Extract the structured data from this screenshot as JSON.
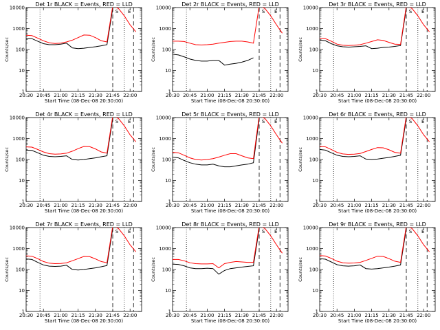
{
  "shared": {
    "xlabel": "Start Time (08-Dec-08 20:30:00)",
    "ylabel": "Counts/sec",
    "x_ticks": [
      "20:30",
      "20:45",
      "21:00",
      "21:15",
      "21:30",
      "21:45",
      "22:00"
    ],
    "y_ticks": [
      "1",
      "10",
      "100",
      "1000",
      "10000"
    ],
    "annotations": [
      "S",
      "E"
    ],
    "colors": {
      "black": "#000000",
      "red": "#ff0000"
    }
  },
  "chart_data": [
    {
      "type": "line",
      "title": "Det 1r BLACK = Events, RED = LLD",
      "x": [
        "20:30",
        "20:35",
        "20:40",
        "20:45",
        "20:50",
        "20:55",
        "21:00",
        "21:05",
        "21:10",
        "21:15",
        "21:20",
        "21:25",
        "21:30",
        "21:35",
        "21:40",
        "21:45",
        "21:50",
        "21:55",
        "22:00",
        "22:05"
      ],
      "ylim": [
        1,
        10000
      ],
      "log_y": true,
      "series": [
        {
          "name": "BLACK = Events",
          "color": "black",
          "values": [
            330,
            330,
            250,
            190,
            170,
            170,
            180,
            200,
            120,
            110,
            115,
            125,
            135,
            150,
            170,
            9000,
            null,
            null,
            null,
            null
          ]
        },
        {
          "name": "RED = LLD",
          "color": "red",
          "values": [
            480,
            460,
            350,
            260,
            210,
            195,
            200,
            230,
            280,
            370,
            490,
            480,
            370,
            260,
            230,
            12000,
            9000,
            4000,
            1500,
            700
          ]
        }
      ],
      "vlines": [
        "20:42 dotted",
        "21:45 dashed",
        "21:55 dotted",
        "22:03 dashed"
      ]
    },
    {
      "type": "line",
      "title": "Det 2r BLACK = Events, RED = LLD",
      "x": [
        "20:30",
        "20:35",
        "20:40",
        "20:45",
        "20:50",
        "20:55",
        "21:00",
        "21:05",
        "21:10",
        "21:15",
        "21:20",
        "21:25",
        "21:30",
        "21:35",
        "21:40",
        "21:45",
        "21:50",
        "21:55",
        "22:00",
        "22:05"
      ],
      "ylim": [
        1,
        10000
      ],
      "log_y": true,
      "series": [
        {
          "name": "BLACK = Events",
          "color": "black",
          "values": [
            60,
            55,
            45,
            35,
            30,
            28,
            28,
            30,
            30,
            18,
            20,
            22,
            25,
            30,
            40,
            null,
            null,
            null,
            null,
            null
          ]
        },
        {
          "name": "RED = LLD",
          "color": "red",
          "values": [
            250,
            250,
            240,
            200,
            170,
            165,
            170,
            180,
            200,
            220,
            240,
            250,
            250,
            230,
            200,
            12000,
            9000,
            4000,
            1500,
            600
          ]
        }
      ],
      "vlines": [
        "20:42 dotted",
        "21:45 dashed",
        "21:55 dotted",
        "22:03 dashed"
      ]
    },
    {
      "type": "line",
      "title": "Det 3r BLACK = Events, RED = LLD",
      "x": [
        "20:30",
        "20:35",
        "20:40",
        "20:45",
        "20:50",
        "20:55",
        "21:00",
        "21:05",
        "21:10",
        "21:15",
        "21:20",
        "21:25",
        "21:30",
        "21:35",
        "21:40",
        "21:45",
        "21:50",
        "21:55",
        "22:00",
        "22:05"
      ],
      "ylim": [
        1,
        10000
      ],
      "log_y": true,
      "series": [
        {
          "name": "BLACK = Events",
          "color": "black",
          "values": [
            280,
            260,
            190,
            150,
            135,
            130,
            135,
            140,
            150,
            110,
            115,
            125,
            130,
            140,
            155,
            9000,
            null,
            null,
            null,
            null
          ]
        },
        {
          "name": "RED = LLD",
          "color": "red",
          "values": [
            350,
            330,
            250,
            180,
            160,
            155,
            160,
            170,
            200,
            240,
            290,
            270,
            220,
            180,
            175,
            12000,
            9000,
            4000,
            1500,
            700
          ]
        }
      ],
      "vlines": [
        "20:42 dotted",
        "21:45 dashed",
        "21:55 dotted",
        "22:03 dashed"
      ]
    },
    {
      "type": "line",
      "title": "Det 4r BLACK = Events, RED = LLD",
      "x": [
        "20:30",
        "20:35",
        "20:40",
        "20:45",
        "20:50",
        "20:55",
        "21:00",
        "21:05",
        "21:10",
        "21:15",
        "21:20",
        "21:25",
        "21:30",
        "21:35",
        "21:40",
        "21:45",
        "21:50",
        "21:55",
        "22:00",
        "22:05"
      ],
      "ylim": [
        1,
        10000
      ],
      "log_y": true,
      "series": [
        {
          "name": "BLACK = Events",
          "color": "black",
          "values": [
            280,
            270,
            210,
            160,
            140,
            135,
            140,
            150,
            100,
            95,
            100,
            110,
            120,
            135,
            150,
            9000,
            null,
            null,
            null,
            null
          ]
        },
        {
          "name": "RED = LLD",
          "color": "red",
          "values": [
            400,
            390,
            300,
            230,
            190,
            180,
            185,
            200,
            250,
            330,
            420,
            410,
            320,
            230,
            200,
            12000,
            9000,
            4000,
            1500,
            700
          ]
        }
      ],
      "vlines": [
        "20:42 dotted",
        "21:45 dashed",
        "21:55 dotted",
        "22:03 dashed"
      ]
    },
    {
      "type": "line",
      "title": "Det 5r BLACK = Events, RED = LLD",
      "x": [
        "20:30",
        "20:35",
        "20:40",
        "20:45",
        "20:50",
        "20:55",
        "21:00",
        "21:05",
        "21:10",
        "21:15",
        "21:20",
        "21:25",
        "21:30",
        "21:35",
        "21:40",
        "21:45",
        "21:50",
        "21:55",
        "22:00",
        "22:05"
      ],
      "ylim": [
        1,
        10000
      ],
      "log_y": true,
      "series": [
        {
          "name": "BLACK = Events",
          "color": "black",
          "values": [
            130,
            120,
            90,
            70,
            60,
            55,
            55,
            60,
            50,
            45,
            45,
            50,
            55,
            60,
            70,
            9000,
            null,
            null,
            null,
            null
          ]
        },
        {
          "name": "RED = LLD",
          "color": "red",
          "values": [
            220,
            210,
            160,
            120,
            100,
            95,
            100,
            110,
            130,
            160,
            190,
            190,
            150,
            120,
            110,
            12000,
            9000,
            4000,
            1500,
            600
          ]
        }
      ],
      "vlines": [
        "20:42 dotted",
        "21:45 dashed",
        "21:55 dotted",
        "22:03 dashed"
      ]
    },
    {
      "type": "line",
      "title": "Det 6r BLACK = Events, RED = LLD",
      "x": [
        "20:30",
        "20:35",
        "20:40",
        "20:45",
        "20:50",
        "20:55",
        "21:00",
        "21:05",
        "21:10",
        "21:15",
        "21:20",
        "21:25",
        "21:30",
        "21:35",
        "21:40",
        "21:45",
        "21:50",
        "21:55",
        "22:00",
        "22:05"
      ],
      "ylim": [
        1,
        10000
      ],
      "log_y": true,
      "series": [
        {
          "name": "BLACK = Events",
          "color": "black",
          "values": [
            300,
            280,
            210,
            160,
            140,
            135,
            140,
            150,
            105,
            100,
            105,
            115,
            125,
            140,
            160,
            9000,
            null,
            null,
            null,
            null
          ]
        },
        {
          "name": "RED = LLD",
          "color": "red",
          "values": [
            420,
            400,
            300,
            220,
            185,
            175,
            180,
            195,
            240,
            300,
            370,
            360,
            290,
            220,
            200,
            12000,
            9000,
            4000,
            1500,
            700
          ]
        }
      ],
      "vlines": [
        "20:42 dotted",
        "21:45 dashed",
        "21:55 dotted",
        "22:03 dashed"
      ]
    },
    {
      "type": "line",
      "title": "Det 7r BLACK = Events, RED = LLD",
      "x": [
        "20:30",
        "20:35",
        "20:40",
        "20:45",
        "20:50",
        "20:55",
        "21:00",
        "21:05",
        "21:10",
        "21:15",
        "21:20",
        "21:25",
        "21:30",
        "21:35",
        "21:40",
        "21:45",
        "21:50",
        "21:55",
        "22:00",
        "22:05"
      ],
      "ylim": [
        1,
        10000
      ],
      "log_y": true,
      "series": [
        {
          "name": "BLACK = Events",
          "color": "black",
          "values": [
            320,
            300,
            220,
            165,
            145,
            140,
            145,
            160,
            100,
            95,
            100,
            110,
            120,
            135,
            155,
            9000,
            null,
            null,
            null,
            null
          ]
        },
        {
          "name": "RED = LLD",
          "color": "red",
          "values": [
            450,
            430,
            330,
            240,
            200,
            190,
            195,
            210,
            260,
            330,
            420,
            410,
            320,
            240,
            210,
            12000,
            9000,
            4000,
            1500,
            700
          ]
        }
      ],
      "vlines": [
        "20:42 dotted",
        "21:45 dashed",
        "21:55 dotted",
        "22:03 dashed"
      ]
    },
    {
      "type": "line",
      "title": "Det 8r BLACK = Events, RED = LLD",
      "x": [
        "20:30",
        "20:35",
        "20:40",
        "20:45",
        "20:50",
        "20:55",
        "21:00",
        "21:05",
        "21:10",
        "21:15",
        "21:20",
        "21:25",
        "21:30",
        "21:35",
        "21:40",
        "21:45",
        "21:50",
        "21:55",
        "22:00",
        "22:05"
      ],
      "ylim": [
        1,
        10000
      ],
      "log_y": true,
      "series": [
        {
          "name": "BLACK = Events",
          "color": "black",
          "values": [
            180,
            175,
            150,
            120,
            110,
            110,
            115,
            110,
            60,
            90,
            110,
            120,
            130,
            140,
            150,
            9000,
            null,
            null,
            null,
            null
          ]
        },
        {
          "name": "RED = LLD",
          "color": "red",
          "values": [
            300,
            300,
            260,
            210,
            190,
            185,
            185,
            190,
            120,
            190,
            220,
            240,
            230,
            220,
            220,
            12000,
            9000,
            4000,
            1500,
            600
          ]
        }
      ],
      "vlines": [
        "20:42 dotted",
        "21:45 dashed",
        "21:55 dotted",
        "22:03 dashed"
      ]
    },
    {
      "type": "line",
      "title": "Det 9r BLACK = Events, RED = LLD",
      "x": [
        "20:30",
        "20:35",
        "20:40",
        "20:45",
        "20:50",
        "20:55",
        "21:00",
        "21:05",
        "21:10",
        "21:15",
        "21:20",
        "21:25",
        "21:30",
        "21:35",
        "21:40",
        "21:45",
        "21:50",
        "21:55",
        "22:00",
        "22:05"
      ],
      "ylim": [
        1,
        10000
      ],
      "log_y": true,
      "series": [
        {
          "name": "BLACK = Events",
          "color": "black",
          "values": [
            330,
            310,
            230,
            170,
            150,
            145,
            150,
            165,
            110,
            105,
            110,
            120,
            130,
            145,
            165,
            9000,
            null,
            null,
            null,
            null
          ]
        },
        {
          "name": "RED = LLD",
          "color": "red",
          "values": [
            460,
            440,
            340,
            250,
            210,
            200,
            205,
            220,
            270,
            340,
            430,
            420,
            330,
            250,
            220,
            12000,
            9000,
            4000,
            1500,
            700
          ]
        }
      ],
      "vlines": [
        "20:42 dotted",
        "21:45 dashed",
        "21:55 dotted",
        "22:03 dashed"
      ]
    }
  ]
}
